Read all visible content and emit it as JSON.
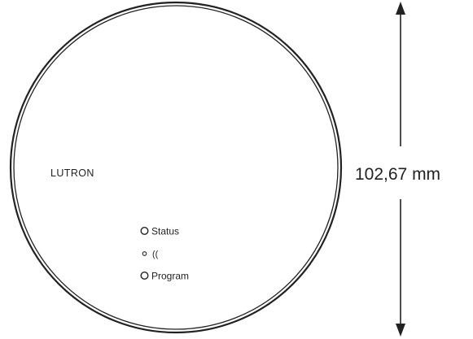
{
  "device": {
    "brand": "LUTRON",
    "indicators": {
      "status_label": "Status",
      "wireless_symbol": "((",
      "program_label": "Program"
    }
  },
  "dimension": {
    "label": "102,67 mm"
  },
  "colors": {
    "outline": "#222222",
    "background": "#ffffff"
  },
  "icons": {
    "wireless": "wireless-signal-icon",
    "status_led": "status-led-icon",
    "program_led": "program-led-icon",
    "small_led": "wireless-led-icon"
  }
}
